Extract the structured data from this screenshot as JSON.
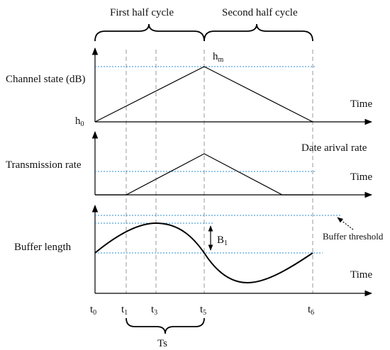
{
  "headers": {
    "first": "First half cycle",
    "second": "Second half cycle"
  },
  "panels": {
    "channel": {
      "label": "Channel state (dB)",
      "time": "Time",
      "h0": "h",
      "h0_sub": "0",
      "hm": "h",
      "hm_sub": "m"
    },
    "rate": {
      "label": "Transmission rate",
      "time": "Time",
      "arrival": "Date arival rate"
    },
    "buffer": {
      "label": "Buffer length",
      "time": "Time",
      "threshold": "Buffer threshold",
      "b1": "B",
      "b1_sub": "1"
    }
  },
  "ticks": [
    {
      "base": "t",
      "sub": "0"
    },
    {
      "base": "t",
      "sub": "1"
    },
    {
      "base": "t",
      "sub": "3"
    },
    {
      "base": "t",
      "sub": "5"
    },
    {
      "base": "t",
      "sub": "6"
    }
  ],
  "ts_label": "Ts"
}
